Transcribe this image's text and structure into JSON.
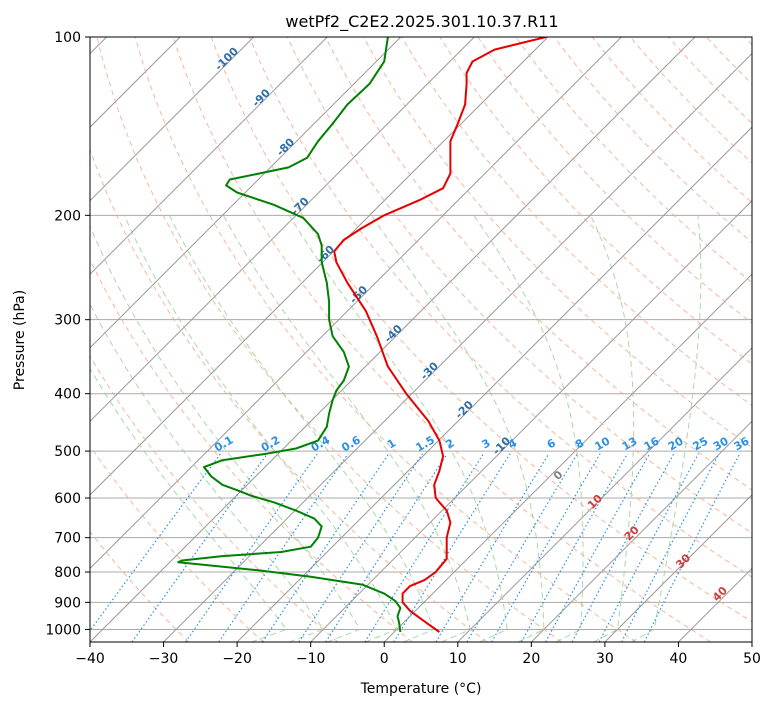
{
  "chart_data": {
    "type": "line",
    "title": "wetPf2_C2E2.2025.301.10.37.R11",
    "xlabel": "Temperature (°C)",
    "ylabel": "Pressure (hPa)",
    "xlim": [
      -40,
      50
    ],
    "ylim": [
      1050,
      100
    ],
    "y_scale": "log",
    "grid": true,
    "x_ticks": [
      -40,
      -30,
      -20,
      -10,
      0,
      10,
      20,
      30,
      40,
      50
    ],
    "y_ticks": [
      1000,
      900,
      800,
      700,
      600,
      500,
      400,
      300,
      200,
      100
    ],
    "series": [
      {
        "color": "#e60000",
        "points": [
          [
            7.5,
            1010
          ],
          [
            5.5,
            970
          ],
          [
            3.5,
            930
          ],
          [
            2.5,
            900
          ],
          [
            2.5,
            870
          ],
          [
            3.5,
            845
          ],
          [
            5.5,
            825
          ],
          [
            7,
            800
          ],
          [
            8.5,
            760
          ],
          [
            8.5,
            700
          ],
          [
            9,
            660
          ],
          [
            8.5,
            630
          ],
          [
            7,
            600
          ],
          [
            6.8,
            570
          ],
          [
            7.5,
            540
          ],
          [
            8,
            510
          ],
          [
            7.5,
            480
          ],
          [
            6,
            445
          ],
          [
            3,
            400
          ],
          [
            0.5,
            360
          ],
          [
            -1,
            320
          ],
          [
            -2.5,
            290
          ],
          [
            -5,
            260
          ],
          [
            -6.5,
            240
          ],
          [
            -6.8,
            230
          ],
          [
            -5.5,
            220
          ],
          [
            -3,
            210
          ],
          [
            0,
            200
          ],
          [
            5,
            188
          ],
          [
            8,
            180
          ],
          [
            9,
            170
          ],
          [
            9,
            150
          ],
          [
            10,
            140
          ],
          [
            11,
            130
          ],
          [
            11.2,
            120
          ],
          [
            11.2,
            115
          ],
          [
            12,
            110
          ],
          [
            15,
            105
          ],
          [
            22,
            100
          ]
        ]
      },
      {
        "color": "#008000",
        "points": [
          [
            2.2,
            1010
          ],
          [
            2,
            970
          ],
          [
            1.8,
            950
          ],
          [
            2.2,
            920
          ],
          [
            1.5,
            895
          ],
          [
            0,
            870
          ],
          [
            -3,
            840
          ],
          [
            -10,
            815
          ],
          [
            -17,
            795
          ],
          [
            -28,
            770
          ],
          [
            -27.5,
            765
          ],
          [
            -22,
            752
          ],
          [
            -14,
            740
          ],
          [
            -10,
            725
          ],
          [
            -9,
            700
          ],
          [
            -8.5,
            670
          ],
          [
            -9.5,
            650
          ],
          [
            -12,
            630
          ],
          [
            -15,
            610
          ],
          [
            -18,
            595
          ],
          [
            -20,
            582
          ],
          [
            -22,
            570
          ],
          [
            -23.5,
            552
          ],
          [
            -24.5,
            532
          ],
          [
            -22,
            518
          ],
          [
            -16,
            505
          ],
          [
            -12,
            495
          ],
          [
            -9,
            480
          ],
          [
            -7.8,
            455
          ],
          [
            -7.5,
            432
          ],
          [
            -7,
            410
          ],
          [
            -6.5,
            395
          ],
          [
            -5.5,
            380
          ],
          [
            -4.8,
            360
          ],
          [
            -5.5,
            340
          ],
          [
            -7,
            320
          ],
          [
            -7.5,
            300
          ],
          [
            -7.5,
            280
          ],
          [
            -7.8,
            260
          ],
          [
            -8.5,
            240
          ],
          [
            -8.5,
            225
          ],
          [
            -9,
            215
          ],
          [
            -11,
            202
          ],
          [
            -15,
            192
          ],
          [
            -20,
            183
          ],
          [
            -21.5,
            178
          ],
          [
            -21,
            174
          ],
          [
            -17,
            170
          ],
          [
            -13,
            166
          ],
          [
            -10.5,
            160
          ],
          [
            -9,
            150
          ],
          [
            -7,
            140
          ],
          [
            -5,
            130
          ],
          [
            -2,
            120
          ],
          [
            0,
            110
          ],
          [
            0.5,
            100
          ]
        ]
      }
    ],
    "dry_adiabat_labels": [
      "-100",
      "-90",
      "-80",
      "-70",
      "-60",
      "-50",
      "-40",
      "-30",
      "-20",
      "-10"
    ],
    "moist_adiabat_labels": [
      "0",
      "10",
      "20",
      "30",
      "40"
    ],
    "mixing_ratio_labels": [
      "0.1",
      "0.2",
      "0.4",
      "0.6",
      "1",
      "1.5",
      "2",
      "3",
      "4",
      "6",
      "8",
      "10",
      "13",
      "16",
      "20",
      "25",
      "30",
      "36"
    ],
    "colors": {
      "temperature": "#e60000",
      "dewpoint": "#008000",
      "isotherm": "#999999",
      "isobar": "#aaaaaa",
      "dry_adiabat": "#f4a582",
      "moist_adiabat": "#8fc98f",
      "mixing_ratio": "#2a90e6"
    }
  }
}
